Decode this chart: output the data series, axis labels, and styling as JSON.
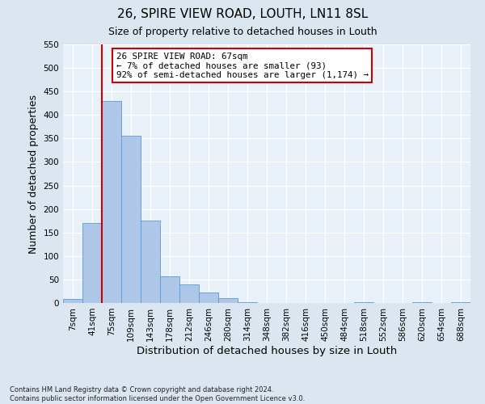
{
  "title": "26, SPIRE VIEW ROAD, LOUTH, LN11 8SL",
  "subtitle": "Size of property relative to detached houses in Louth",
  "xlabel": "Distribution of detached houses by size in Louth",
  "ylabel": "Number of detached properties",
  "bar_labels": [
    "7sqm",
    "41sqm",
    "75sqm",
    "109sqm",
    "143sqm",
    "178sqm",
    "212sqm",
    "246sqm",
    "280sqm",
    "314sqm",
    "348sqm",
    "382sqm",
    "416sqm",
    "450sqm",
    "484sqm",
    "518sqm",
    "552sqm",
    "586sqm",
    "620sqm",
    "654sqm",
    "688sqm"
  ],
  "bar_heights": [
    8,
    170,
    430,
    356,
    175,
    56,
    40,
    22,
    10,
    2,
    0,
    0,
    0,
    0,
    0,
    1,
    0,
    0,
    1,
    0,
    2
  ],
  "bar_color": "#aec6e8",
  "bar_edge_color": "#5b9bd5",
  "bar_width": 1.0,
  "ylim": [
    0,
    550
  ],
  "yticks": [
    0,
    50,
    100,
    150,
    200,
    250,
    300,
    350,
    400,
    450,
    500,
    550
  ],
  "vline_x": 1.5,
  "vline_color": "#cc0000",
  "annotation_line1": "26 SPIRE VIEW ROAD: 67sqm",
  "annotation_line2": "← 7% of detached houses are smaller (93)",
  "annotation_line3": "92% of semi-detached houses are larger (1,174) →",
  "annotation_box_color": "#ffffff",
  "annotation_box_edge": "#cc0000",
  "background_color": "#dce6f0",
  "plot_bg_color": "#e8f0f8",
  "footnote": "Contains HM Land Registry data © Crown copyright and database right 2024.\nContains public sector information licensed under the Open Government Licence v3.0.",
  "title_fontsize": 11,
  "subtitle_fontsize": 9,
  "xlabel_fontsize": 9.5,
  "ylabel_fontsize": 9,
  "tick_fontsize": 7.5,
  "footnote_fontsize": 6.0
}
